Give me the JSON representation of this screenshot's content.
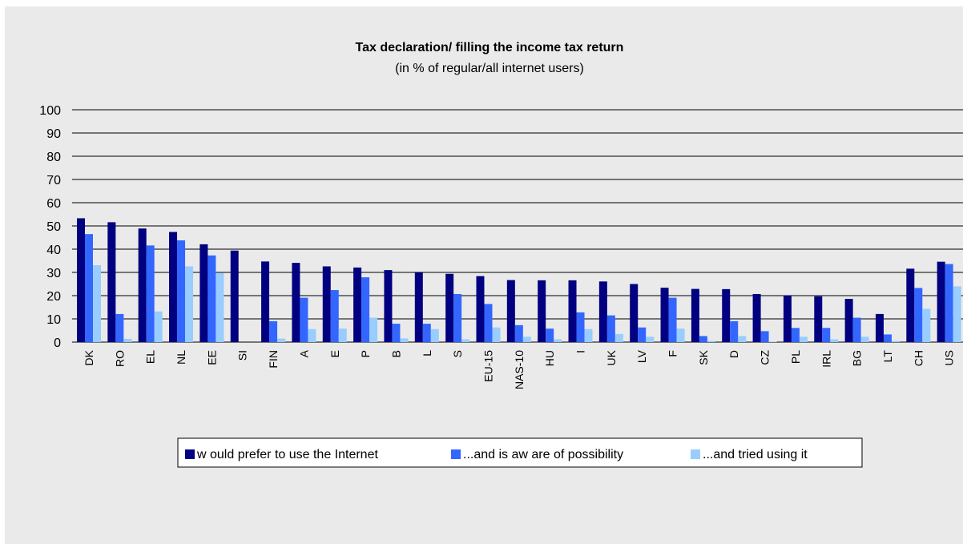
{
  "chart_data": {
    "type": "bar",
    "title": "Tax declaration/ filling the income tax return",
    "subtitle": "(in % of regular/all internet users)",
    "ylim": [
      0,
      100
    ],
    "yticks": [
      0,
      10,
      20,
      30,
      40,
      50,
      60,
      70,
      80,
      90,
      100
    ],
    "grid": true,
    "legend_position": "bottom",
    "categories": [
      "DK",
      "RO",
      "EL",
      "NL",
      "EE",
      "SI",
      "FIN",
      "A",
      "E",
      "P",
      "B",
      "L",
      "S",
      "EU-15",
      "NAS-10",
      "HU",
      "I",
      "UK",
      "LV",
      "F",
      "SK",
      "D",
      "CZ",
      "PL",
      "IRL",
      "BG",
      "LT",
      "CH",
      "US"
    ],
    "series": [
      {
        "name": "w ould prefer to use the Internet",
        "color": "#000080",
        "values": [
          53.3,
          51.6,
          48.9,
          47.4,
          42.1,
          39.4,
          34.7,
          34.1,
          32.6,
          32.1,
          31.0,
          29.9,
          29.4,
          28.4,
          26.7,
          26.6,
          26.6,
          26.1,
          25.0,
          23.4,
          22.9,
          22.8,
          20.7,
          20.1,
          19.7,
          18.6,
          12.1,
          31.6,
          34.6
        ]
      },
      {
        "name": "...and is aw are of possibility",
        "color": "#3366ff",
        "values": [
          46.5,
          12.1,
          41.6,
          43.8,
          37.3,
          0.0,
          9.0,
          19.1,
          22.4,
          27.9,
          7.9,
          7.9,
          20.7,
          16.4,
          7.3,
          5.8,
          12.8,
          11.5,
          6.3,
          19.1,
          2.6,
          9.0,
          4.7,
          6.1,
          6.1,
          10.5,
          3.3,
          23.3,
          33.6
        ]
      },
      {
        "name": "...and tried using it",
        "color": "#99ccff",
        "values": [
          33.1,
          1.4,
          13.2,
          32.6,
          29.7,
          0.0,
          1.5,
          5.6,
          5.8,
          10.5,
          1.6,
          5.6,
          1.2,
          6.3,
          2.3,
          1.2,
          5.6,
          3.5,
          2.3,
          5.8,
          0.5,
          2.6,
          0.2,
          2.3,
          1.2,
          2.3,
          0.5,
          14.3,
          24.0
        ]
      }
    ]
  }
}
